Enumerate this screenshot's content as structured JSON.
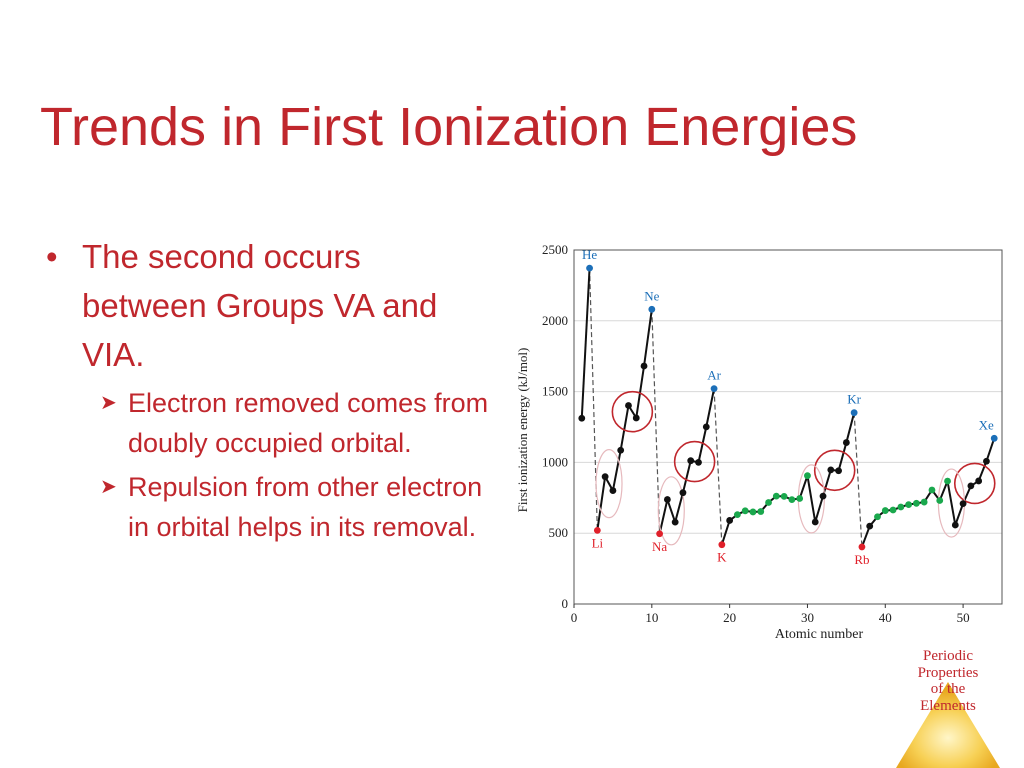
{
  "slide": {
    "title": "Trends in First Ionization Energies",
    "bullets": [
      {
        "text": "The second occurs between Groups VA and VIA."
      }
    ],
    "subbullets": [
      {
        "text": "Electron removed comes from doubly occupied orbital."
      },
      {
        "text": "Repulsion from other electron in orbital helps in its removal."
      }
    ],
    "badge": {
      "text": "Periodic Properties of the Elements",
      "lines": [
        "Periodic",
        "Properties",
        "of the",
        "Elements"
      ]
    }
  },
  "chart_data": {
    "type": "scatter",
    "title": "",
    "xlabel": "Atomic number",
    "ylabel": "First ionization energy (kJ/mol)",
    "xlim": [
      0,
      55
    ],
    "ylim": [
      0,
      2500
    ],
    "xticks": [
      "0",
      "10",
      "20",
      "30",
      "40",
      "50"
    ],
    "yticks": [
      "0",
      "500",
      "1000",
      "1500",
      "2000",
      "2500"
    ],
    "grid": true,
    "series": [
      {
        "name": "",
        "x": [
          1,
          2,
          3,
          4,
          5,
          6,
          7,
          8,
          9,
          10,
          11,
          12,
          13,
          14,
          15,
          16,
          17,
          18,
          19,
          20,
          21,
          22,
          23,
          24,
          25,
          26,
          27,
          28,
          29,
          30,
          31,
          32,
          33,
          34,
          35,
          36,
          37,
          38,
          39,
          40,
          41,
          42,
          43,
          44,
          45,
          46,
          47,
          48,
          49,
          50,
          51,
          52,
          53,
          54
        ],
        "y": [
          1312,
          2372,
          520,
          899,
          801,
          1086,
          1402,
          1314,
          1681,
          2081,
          496,
          738,
          578,
          786,
          1012,
          1000,
          1251,
          1521,
          419,
          590,
          631,
          658,
          650,
          653,
          717,
          762,
          760,
          737,
          745,
          906,
          579,
          762,
          947,
          941,
          1140,
          1351,
          403,
          550,
          616,
          660,
          664,
          685,
          702,
          711,
          720,
          805,
          731,
          868,
          558,
          709,
          834,
          869,
          1008,
          1170
        ]
      }
    ],
    "annotations": [
      "He",
      "Ne",
      "Ar",
      "Kr",
      "Xe",
      "Li",
      "Na",
      "K",
      "Rb"
    ]
  }
}
